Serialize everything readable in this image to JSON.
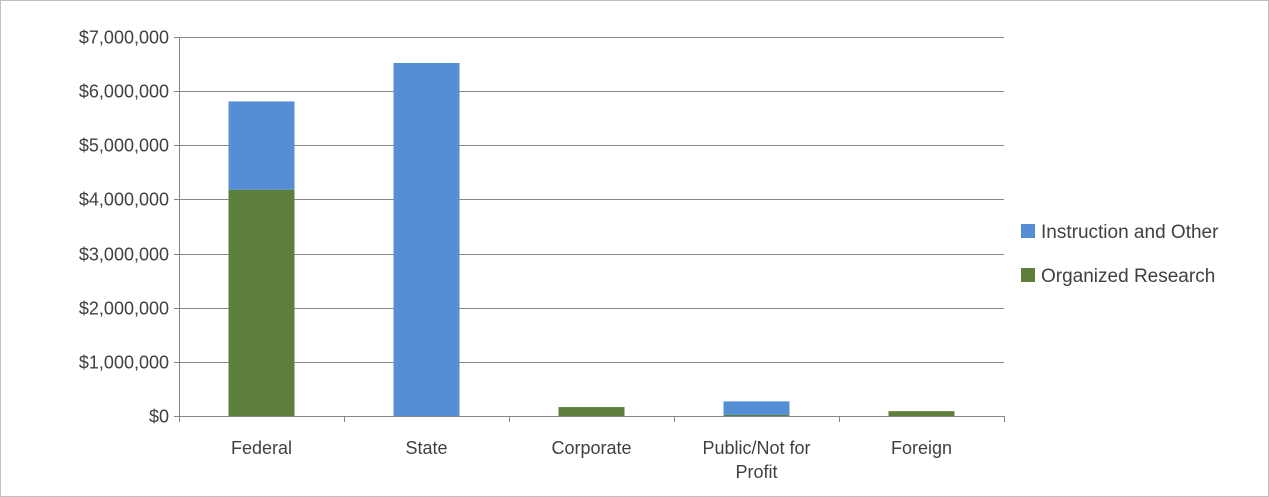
{
  "chart_data": {
    "type": "bar",
    "stacked": true,
    "title": "",
    "xlabel": "",
    "ylabel": "",
    "categories": [
      [
        "Federal"
      ],
      [
        "State"
      ],
      [
        "Corporate"
      ],
      [
        "Public/Not for",
        "Profit"
      ],
      [
        "Foreign"
      ]
    ],
    "series": [
      {
        "name": "Organized Research",
        "color": "#5e7f3c",
        "values": [
          4180000,
          0,
          165000,
          20000,
          90000
        ]
      },
      {
        "name": "Instruction and Other",
        "color": "#558ed5",
        "values": [
          1630000,
          6520000,
          0,
          250000,
          0
        ]
      }
    ],
    "legend_order": [
      "Instruction and Other",
      "Organized Research"
    ],
    "y_ticks": [
      {
        "value": 0,
        "label": "$0"
      },
      {
        "value": 1000000,
        "label": "$1,000,000"
      },
      {
        "value": 2000000,
        "label": "$2,000,000"
      },
      {
        "value": 3000000,
        "label": "$3,000,000"
      },
      {
        "value": 4000000,
        "label": "$4,000,000"
      },
      {
        "value": 5000000,
        "label": "$5,000,000"
      },
      {
        "value": 6000000,
        "label": "$6,000,000"
      },
      {
        "value": 7000000,
        "label": "$7,000,000"
      }
    ],
    "ylim": [
      0,
      7000000
    ],
    "grid": "horizontal",
    "legend_position": "right",
    "gridline_color": "#868686",
    "text_color": "#404040"
  }
}
